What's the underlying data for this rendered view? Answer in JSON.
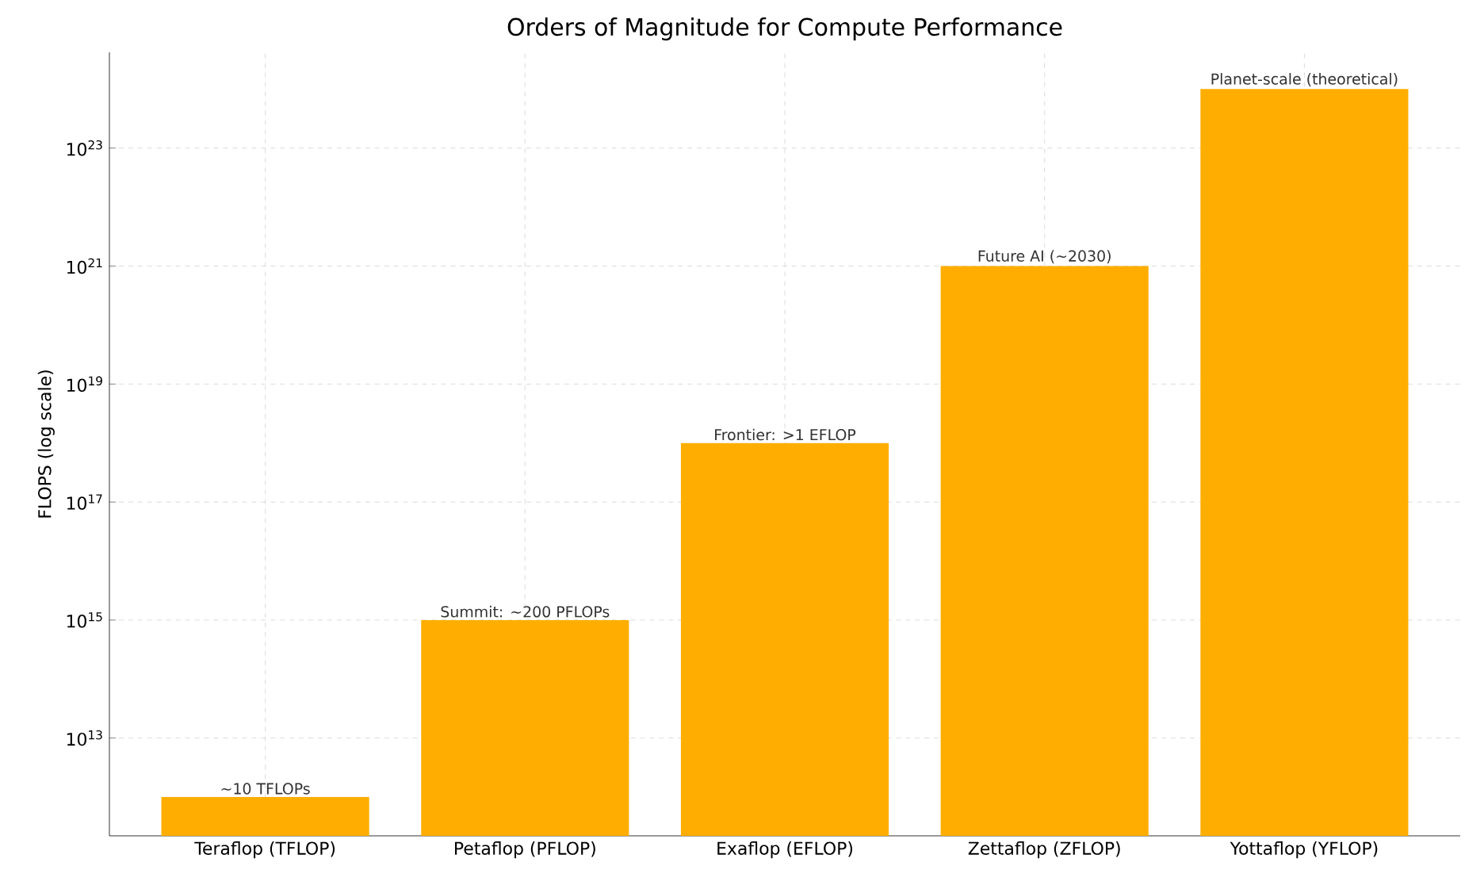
{
  "chart_data": {
    "type": "bar",
    "title": "Orders of Magnitude for Compute Performance",
    "ylabel": "FLOPS (log scale)",
    "categories": [
      "Teraflop (TFLOP)",
      "Petaflop (PFLOP)",
      "Exaflop (EFLOP)",
      "Zettaflop (ZFLOP)",
      "Yottaflop (YFLOP)"
    ],
    "values": [
      1000000000000.0,
      1000000000000000.0,
      1e+18,
      1e+21,
      1e+24
    ],
    "annotations": [
      {
        "text": "~10 TFLOPs",
        "x": "Teraflop (TFLOP)",
        "y": 1000000000000.0
      },
      {
        "text": "Summit: ~200 PFLOPs",
        "x": "Petaflop (PFLOP)",
        "y": 1000000000000000.0
      },
      {
        "text": "Frontier: >1 EFLOP",
        "x": "Exaflop (EFLOP)",
        "y": 1e+18
      },
      {
        "text": "Future AI (~2030)",
        "x": "Zettaflop (ZFLOP)",
        "y": 1e+21
      },
      {
        "text": "Planet-scale (theoretical)",
        "x": "Yottaflop (YFLOP)",
        "y": 1e+24
      }
    ],
    "color": "#ffae00",
    "log": "y",
    "ylim": [
      220000000000.0,
      4.2e+24
    ],
    "yticks": [
      {
        "value": 10000000000000.0,
        "label": "10$^{13}$"
      },
      {
        "value": 1000000000000000.0,
        "label": "10$^{15}$"
      },
      {
        "value": 1e+17,
        "label": "10$^{17}$"
      },
      {
        "value": 1e+19,
        "label": "10$^{19}$"
      },
      {
        "value": 1e+21,
        "label": "10$^{21}$"
      },
      {
        "value": 1e+23,
        "label": "10$^{23}$"
      }
    ],
    "grid": true
  }
}
